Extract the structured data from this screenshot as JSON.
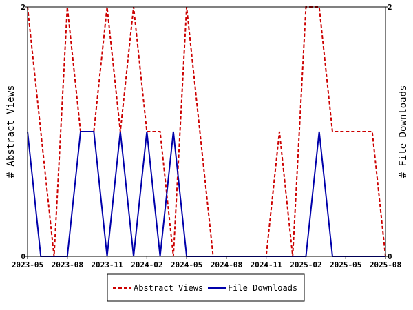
{
  "chart_data": {
    "type": "line",
    "x": [
      "2023-05",
      "2023-06",
      "2023-07",
      "2023-08",
      "2023-09",
      "2023-10",
      "2023-11",
      "2023-12",
      "2024-01",
      "2024-02",
      "2024-03",
      "2024-04",
      "2024-05",
      "2024-06",
      "2024-07",
      "2024-08",
      "2024-09",
      "2024-10",
      "2024-11",
      "2024-12",
      "2025-01",
      "2025-02",
      "2025-03",
      "2025-04",
      "2025-05",
      "2025-06",
      "2025-07",
      "2025-08"
    ],
    "x_ticks": [
      "2023-05",
      "2023-08",
      "2023-11",
      "2024-02",
      "2024-05",
      "2024-08",
      "2024-11",
      "2025-02",
      "2025-05",
      "2025-08"
    ],
    "series": [
      {
        "name": "Abstract Views",
        "axis": "left",
        "color": "#cc0000",
        "dash": "dashed",
        "values": [
          2,
          1,
          0,
          2,
          1,
          1,
          2,
          1,
          2,
          1,
          1,
          0,
          2,
          1,
          0,
          0,
          0,
          0,
          0,
          1,
          0,
          2,
          2,
          1,
          1,
          1,
          1,
          0
        ]
      },
      {
        "name": "File Downloads",
        "axis": "right",
        "color": "#0000aa",
        "dash": "solid",
        "values": [
          1,
          0,
          0,
          0,
          1,
          1,
          0,
          1,
          0,
          1,
          0,
          1,
          0,
          0,
          0,
          0,
          0,
          0,
          0,
          0,
          0,
          0,
          1,
          0,
          0,
          0,
          0,
          0
        ]
      }
    ],
    "ylabel_left": "# Abstract Views",
    "ylabel_right": "# File Downloads",
    "ylim_left": [
      0,
      2
    ],
    "ylim_right": [
      0,
      2
    ],
    "yticks_left": [
      "0",
      "2"
    ],
    "yticks_right": [
      "0",
      "2"
    ],
    "grid": false,
    "legend_position": "bottom-center"
  }
}
